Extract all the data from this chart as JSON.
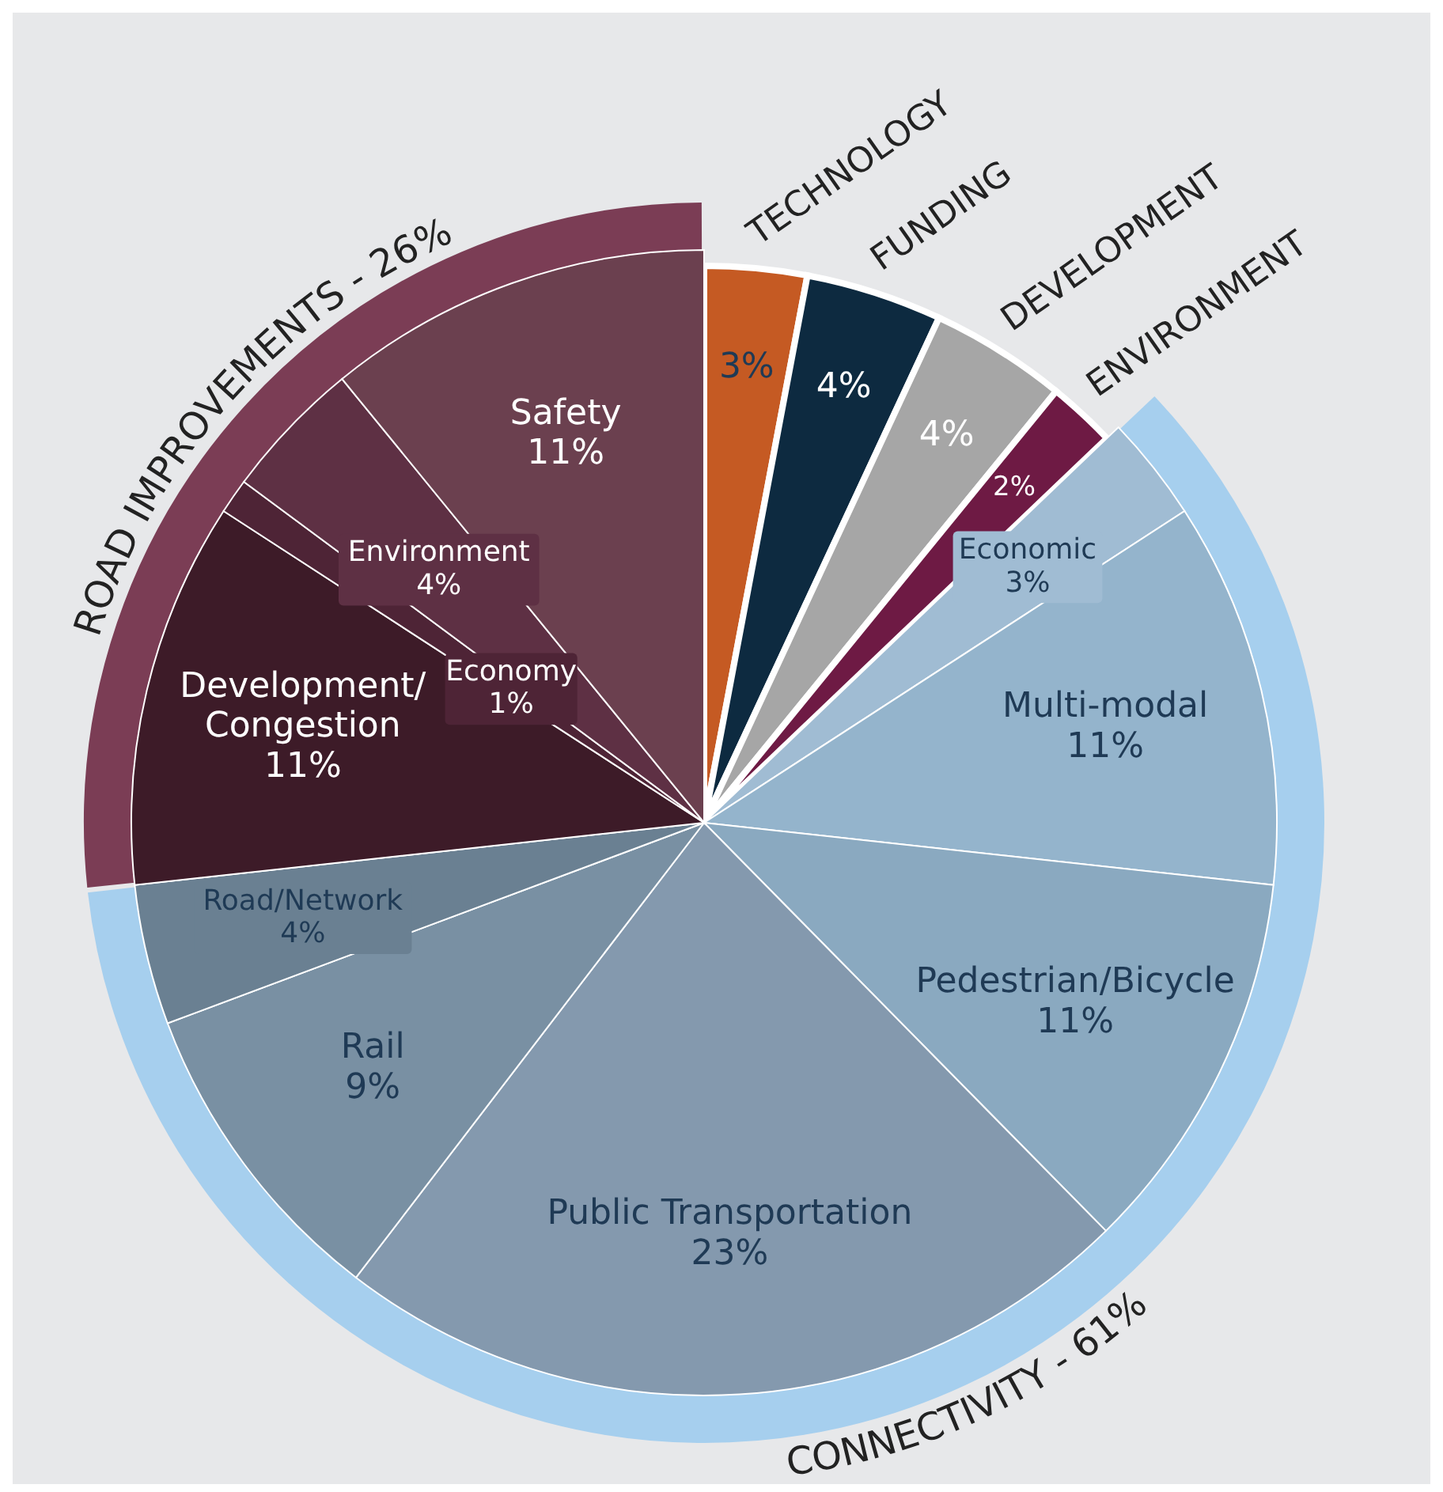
{
  "chart_data": {
    "type": "pie",
    "categories": [
      "TECHNOLOGY",
      "FUNDING",
      "DEVELOPMENT",
      "ENVIRONMENT",
      "Economic",
      "Multi-modal",
      "Pedestrian/Bicycle",
      "Public Transportation",
      "Rail",
      "Road/Network",
      "Development/Congestion",
      "Economy",
      "Environment",
      "Safety"
    ],
    "values": [
      3,
      4,
      4,
      2,
      3,
      11,
      11,
      23,
      9,
      4,
      11,
      1,
      4,
      11
    ],
    "colors": [
      "#c55a23",
      "#0d2a40",
      "#a6a6a6",
      "#6e1a44",
      "#a0bcd3",
      "#94b4cc",
      "#8aa9c0",
      "#8499ae",
      "#7990a3",
      "#6a8092",
      "#3d1b28",
      "#4e2436",
      "#5e3044",
      "#6b404f"
    ],
    "value_labels": [
      "3%",
      "4%",
      "4%",
      "2%",
      "3%",
      "11%",
      "11%",
      "23%",
      "9%",
      "4%",
      "11%",
      "1%",
      "4%",
      "11%"
    ],
    "annotations": [
      "CONNECTIVITY - 61%",
      "ROAD IMPROVEMENTS - 26%"
    ]
  }
}
